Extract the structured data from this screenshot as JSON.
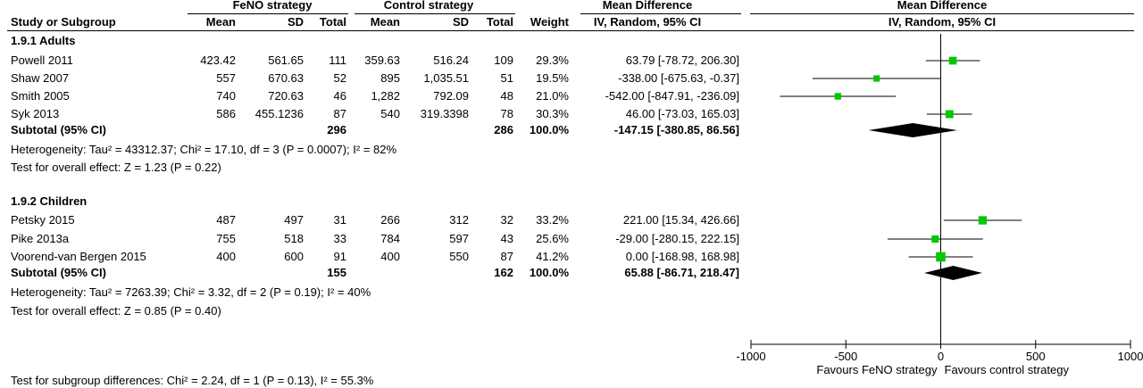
{
  "header": {
    "group1_label": "FeNO strategy",
    "group2_label": "Control strategy",
    "md_title": "Mean Difference",
    "md_method": "IV, Random, 95% CI",
    "plot_title": "Mean Difference",
    "plot_method": "IV, Random, 95% CI",
    "col_study": "Study or Subgroup",
    "col_mean1": "Mean",
    "col_sd1": "SD",
    "col_total1": "Total",
    "col_mean2": "Mean",
    "col_sd2": "SD",
    "col_total2": "Total",
    "col_weight": "Weight"
  },
  "subgroups": [
    {
      "title": "1.9.1 Adults",
      "studies": [
        {
          "name": "Powell 2011",
          "mean1": "423.42",
          "sd1": "561.65",
          "n1": "111",
          "mean2": "359.63",
          "sd2": "516.24",
          "n2": "109",
          "weight": "29.3%",
          "ci_text": "63.79 [-78.72, 206.30]"
        },
        {
          "name": "Shaw 2007",
          "mean1": "557",
          "sd1": "670.63",
          "n1": "52",
          "mean2": "895",
          "sd2": "1,035.51",
          "n2": "51",
          "weight": "19.5%",
          "ci_text": "-338.00 [-675.63, -0.37]"
        },
        {
          "name": "Smith 2005",
          "mean1": "740",
          "sd1": "720.63",
          "n1": "46",
          "mean2": "1,282",
          "sd2": "792.09",
          "n2": "48",
          "weight": "21.0%",
          "ci_text": "-542.00 [-847.91, -236.09]"
        },
        {
          "name": "Syk 2013",
          "mean1": "586",
          "sd1": "455.1236",
          "n1": "87",
          "mean2": "540",
          "sd2": "319.3398",
          "n2": "78",
          "weight": "30.3%",
          "ci_text": "46.00 [-73.03, 165.03]"
        }
      ],
      "subtotal": {
        "label": "Subtotal (95% CI)",
        "n1": "296",
        "n2": "286",
        "weight": "100.0%",
        "ci_text": "-147.15 [-380.85, 86.56]"
      },
      "heterogeneity": "Heterogeneity: Tau² = 43312.37; Chi² = 17.10, df = 3 (P = 0.0007); I² = 82%",
      "overall": "Test for overall effect: Z = 1.23 (P = 0.22)"
    },
    {
      "title": "1.9.2 Children",
      "studies": [
        {
          "name": "Petsky 2015",
          "mean1": "487",
          "sd1": "497",
          "n1": "31",
          "mean2": "266",
          "sd2": "312",
          "n2": "32",
          "weight": "33.2%",
          "ci_text": "221.00 [15.34, 426.66]"
        },
        {
          "name": "Pike 2013a",
          "mean1": "755",
          "sd1": "518",
          "n1": "33",
          "mean2": "784",
          "sd2": "597",
          "n2": "43",
          "weight": "25.6%",
          "ci_text": "-29.00 [-280.15, 222.15]"
        },
        {
          "name": "Voorend-van Bergen 2015",
          "mean1": "400",
          "sd1": "600",
          "n1": "91",
          "mean2": "400",
          "sd2": "550",
          "n2": "87",
          "weight": "41.2%",
          "ci_text": "0.00 [-168.98, 168.98]"
        }
      ],
      "subtotal": {
        "label": "Subtotal (95% CI)",
        "n1": "155",
        "n2": "162",
        "weight": "100.0%",
        "ci_text": "65.88 [-86.71, 218.47]"
      },
      "heterogeneity": "Heterogeneity: Tau² = 7263.39; Chi² = 3.32, df = 2 (P = 0.19); I² = 40%",
      "overall": "Test for overall effect: Z = 0.85 (P = 0.40)"
    }
  ],
  "footer": {
    "subgroup_diff": "Test for subgroup differences: Chi² = 2.24, df = 1 (P = 0.13), I² = 55.3%"
  },
  "chart_data": {
    "type": "forest",
    "xlim": [
      -1000,
      1000
    ],
    "xticks": [
      -1000,
      -500,
      0,
      500,
      1000
    ],
    "xtick_labels": [
      "-1000",
      "-500",
      "0",
      "500",
      "1000"
    ],
    "favours_left": "Favours FeNO strategy",
    "favours_right": "Favours control strategy",
    "colors": {
      "marker": "#00c800",
      "diamond": "#000000",
      "line": "#000000"
    },
    "studies": [
      {
        "group": 0,
        "name": "Powell 2011",
        "est": 63.79,
        "lo": -78.72,
        "hi": 206.3,
        "weight": 29.3
      },
      {
        "group": 0,
        "name": "Shaw 2007",
        "est": -338.0,
        "lo": -675.63,
        "hi": -0.37,
        "weight": 19.5
      },
      {
        "group": 0,
        "name": "Smith 2005",
        "est": -542.0,
        "lo": -847.91,
        "hi": -236.09,
        "weight": 21.0
      },
      {
        "group": 0,
        "name": "Syk 2013",
        "est": 46.0,
        "lo": -73.03,
        "hi": 165.03,
        "weight": 30.3
      },
      {
        "group": 1,
        "name": "Petsky 2015",
        "est": 221.0,
        "lo": 15.34,
        "hi": 426.66,
        "weight": 33.2
      },
      {
        "group": 1,
        "name": "Pike 2013a",
        "est": -29.0,
        "lo": -280.15,
        "hi": 222.15,
        "weight": 25.6
      },
      {
        "group": 1,
        "name": "Voorend-van Bergen 2015",
        "est": 0.0,
        "lo": -168.98,
        "hi": 168.98,
        "weight": 41.2
      }
    ],
    "subtotals": [
      {
        "group": 0,
        "est": -147.15,
        "lo": -380.85,
        "hi": 86.56
      },
      {
        "group": 1,
        "est": 65.88,
        "lo": -86.71,
        "hi": 218.47
      }
    ]
  }
}
